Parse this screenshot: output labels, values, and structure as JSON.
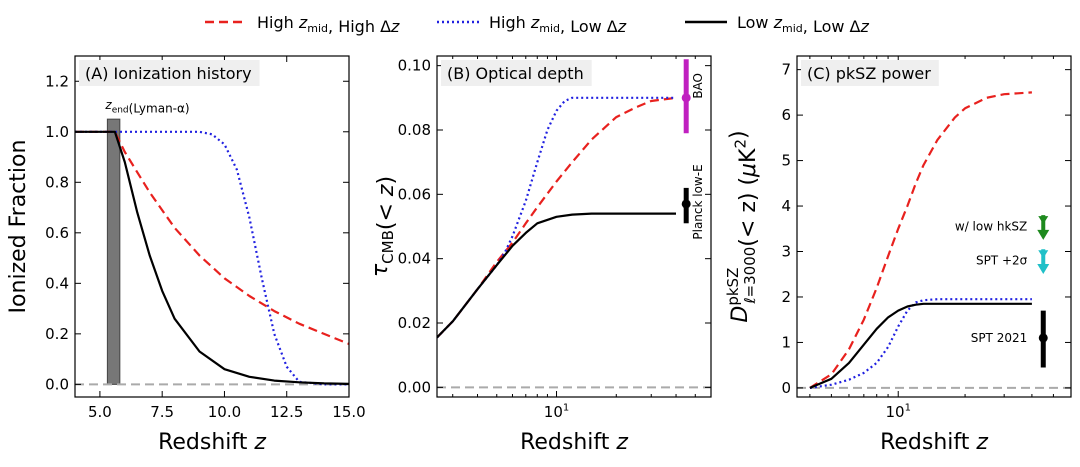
{
  "legend": [
    {
      "label": "High z_mid, High Δz",
      "color": "#e8211e",
      "style": "dashed"
    },
    {
      "label": "High z_mid, Low Δz",
      "color": "#2020e0",
      "style": "dotted"
    },
    {
      "label": "Low z_mid, Low Δz",
      "color": "#000000",
      "style": "solid"
    }
  ],
  "chart_data": [
    {
      "type": "line",
      "panel_title": "(A) Ionization history",
      "xlabel": "Redshift z",
      "ylabel": "Ionized Fraction",
      "xscale": "linear",
      "xlim": [
        4,
        15
      ],
      "ylim": [
        -0.05,
        1.3
      ],
      "xticks": [
        5.0,
        7.5,
        10.0,
        12.5,
        15.0
      ],
      "xticklabels": [
        "5.0",
        "7.5",
        "10.0",
        "12.5",
        "15.0"
      ],
      "yticks": [
        0.0,
        0.2,
        0.4,
        0.6,
        0.8,
        1.0,
        1.2
      ],
      "yticklabels": [
        "0.0",
        "0.2",
        "0.4",
        "0.6",
        "0.8",
        "1.0",
        "1.2"
      ],
      "reference_line": {
        "y": 0,
        "color": "#aaaaaa",
        "style": "dashed"
      },
      "band": {
        "label": "z_end(Lyman-α)",
        "x": [
          5.3,
          5.8
        ],
        "y": [
          0,
          1.05
        ],
        "color": "#777777"
      },
      "series": [
        {
          "x": [
            4,
            5.6,
            6,
            7,
            8,
            9,
            10,
            11,
            12,
            13,
            14,
            15
          ],
          "values": [
            1.0,
            1.0,
            0.92,
            0.76,
            0.62,
            0.51,
            0.42,
            0.35,
            0.29,
            0.24,
            0.2,
            0.16
          ],
          "color": "#e8211e",
          "style": "dashed"
        },
        {
          "x": [
            4,
            9,
            9.5,
            10,
            10.5,
            11,
            11.5,
            12,
            12.5,
            13,
            14,
            15
          ],
          "values": [
            1.0,
            1.0,
            0.99,
            0.95,
            0.85,
            0.66,
            0.42,
            0.2,
            0.07,
            0.01,
            0.0,
            0.0
          ],
          "color": "#2020e0",
          "style": "dotted"
        },
        {
          "x": [
            4,
            5.6,
            6,
            6.5,
            7,
            7.5,
            8,
            9,
            10,
            11,
            12,
            13,
            14,
            15
          ],
          "values": [
            1.0,
            1.0,
            0.88,
            0.68,
            0.51,
            0.37,
            0.26,
            0.13,
            0.06,
            0.03,
            0.015,
            0.008,
            0.004,
            0.002
          ],
          "color": "#000000",
          "style": "solid"
        }
      ]
    },
    {
      "type": "line",
      "panel_title": "(B) Optical depth",
      "xlabel": "Redshift z",
      "ylabel": "τ_CMB(< z)",
      "xscale": "log",
      "xlim": [
        2.5,
        60
      ],
      "ylim": [
        -0.003,
        0.103
      ],
      "xticks": [
        10
      ],
      "xticklabels": [
        "10^1"
      ],
      "yticks": [
        0.0,
        0.02,
        0.04,
        0.06,
        0.08,
        0.1
      ],
      "yticklabels": [
        "0.00",
        "0.02",
        "0.04",
        "0.06",
        "0.08",
        "0.10"
      ],
      "reference_line": {
        "y": 0,
        "color": "#aaaaaa",
        "style": "dashed"
      },
      "constraints": [
        {
          "label": "BAO",
          "x": 45,
          "y": 0.09,
          "ylow": 0.079,
          "yhigh": 0.102,
          "color": "#c020c0"
        },
        {
          "label": "Planck low-E",
          "x": 45,
          "y": 0.057,
          "ylow": 0.051,
          "yhigh": 0.062,
          "color": "#000000"
        }
      ],
      "series": [
        {
          "x": [
            2.5,
            3,
            4,
            5,
            6,
            7,
            8,
            10,
            12,
            15,
            20,
            25,
            30,
            40
          ],
          "values": [
            0.0155,
            0.0205,
            0.0305,
            0.039,
            0.045,
            0.051,
            0.056,
            0.064,
            0.07,
            0.077,
            0.084,
            0.087,
            0.089,
            0.09
          ],
          "color": "#e8211e",
          "style": "dashed"
        },
        {
          "x": [
            2.5,
            3,
            4,
            5,
            5.5,
            6,
            7,
            8,
            9,
            10,
            11,
            12,
            15,
            20,
            30,
            40
          ],
          "values": [
            0.0155,
            0.0205,
            0.0305,
            0.038,
            0.042,
            0.047,
            0.058,
            0.07,
            0.08,
            0.086,
            0.089,
            0.09,
            0.09,
            0.09,
            0.09,
            0.09
          ],
          "color": "#2020e0",
          "style": "dotted"
        },
        {
          "x": [
            2.5,
            3,
            4,
            5,
            6,
            7,
            8,
            10,
            12,
            15,
            20,
            40
          ],
          "values": [
            0.0155,
            0.0205,
            0.0305,
            0.038,
            0.044,
            0.048,
            0.051,
            0.053,
            0.0537,
            0.054,
            0.054,
            0.054
          ],
          "color": "#000000",
          "style": "solid"
        }
      ]
    },
    {
      "type": "line",
      "panel_title": "(C) pkSZ power",
      "xlabel": "Redshift z",
      "ylabel": "D^pkSZ_ℓ=3000(< z) (μK²)",
      "xscale": "log",
      "xlim": [
        3.5,
        60
      ],
      "ylim": [
        -0.2,
        7.3
      ],
      "xticks": [
        10
      ],
      "xticklabels": [
        "10^1"
      ],
      "yticks": [
        0,
        1,
        2,
        3,
        4,
        5,
        6,
        7
      ],
      "yticklabels": [
        "0",
        "1",
        "2",
        "3",
        "4",
        "5",
        "6",
        "7"
      ],
      "reference_line": {
        "y": 0,
        "color": "#aaaaaa",
        "style": "dashed"
      },
      "constraints": [
        {
          "label": "w/ low hkSZ",
          "x": 45,
          "y": 3.55,
          "ylow": 3.3,
          "yhigh": 3.8,
          "color": "#1e8a1e",
          "marker": "arrow-down"
        },
        {
          "label": "SPT +2σ",
          "x": 45,
          "y": 2.8,
          "ylow": 2.55,
          "yhigh": 3.05,
          "color": "#20c0c8",
          "marker": "arrow-down"
        },
        {
          "label": "SPT 2021",
          "x": 45,
          "y": 1.1,
          "ylow": 0.45,
          "yhigh": 1.7,
          "color": "#000000",
          "marker": "dot"
        }
      ],
      "series": [
        {
          "x": [
            4,
            5,
            6,
            7,
            8,
            9,
            10,
            11,
            12,
            13,
            15,
            18,
            20,
            25,
            30,
            40
          ],
          "values": [
            0.0,
            0.3,
            0.85,
            1.5,
            2.2,
            2.9,
            3.5,
            4.0,
            4.5,
            4.9,
            5.45,
            5.95,
            6.15,
            6.38,
            6.46,
            6.5
          ],
          "color": "#e8211e",
          "style": "dashed"
        },
        {
          "x": [
            4,
            5,
            6,
            7,
            8,
            9,
            10,
            11,
            12,
            13,
            15,
            20,
            30,
            40
          ],
          "values": [
            0.0,
            0.07,
            0.18,
            0.33,
            0.55,
            0.9,
            1.35,
            1.7,
            1.88,
            1.93,
            1.95,
            1.95,
            1.95,
            1.95
          ],
          "color": "#2020e0",
          "style": "dotted"
        },
        {
          "x": [
            4,
            5,
            6,
            7,
            8,
            9,
            10,
            11,
            12,
            13,
            15,
            20,
            40
          ],
          "values": [
            0.0,
            0.2,
            0.55,
            0.95,
            1.3,
            1.55,
            1.7,
            1.79,
            1.83,
            1.85,
            1.85,
            1.85,
            1.85
          ],
          "color": "#000000",
          "style": "solid"
        }
      ]
    }
  ]
}
